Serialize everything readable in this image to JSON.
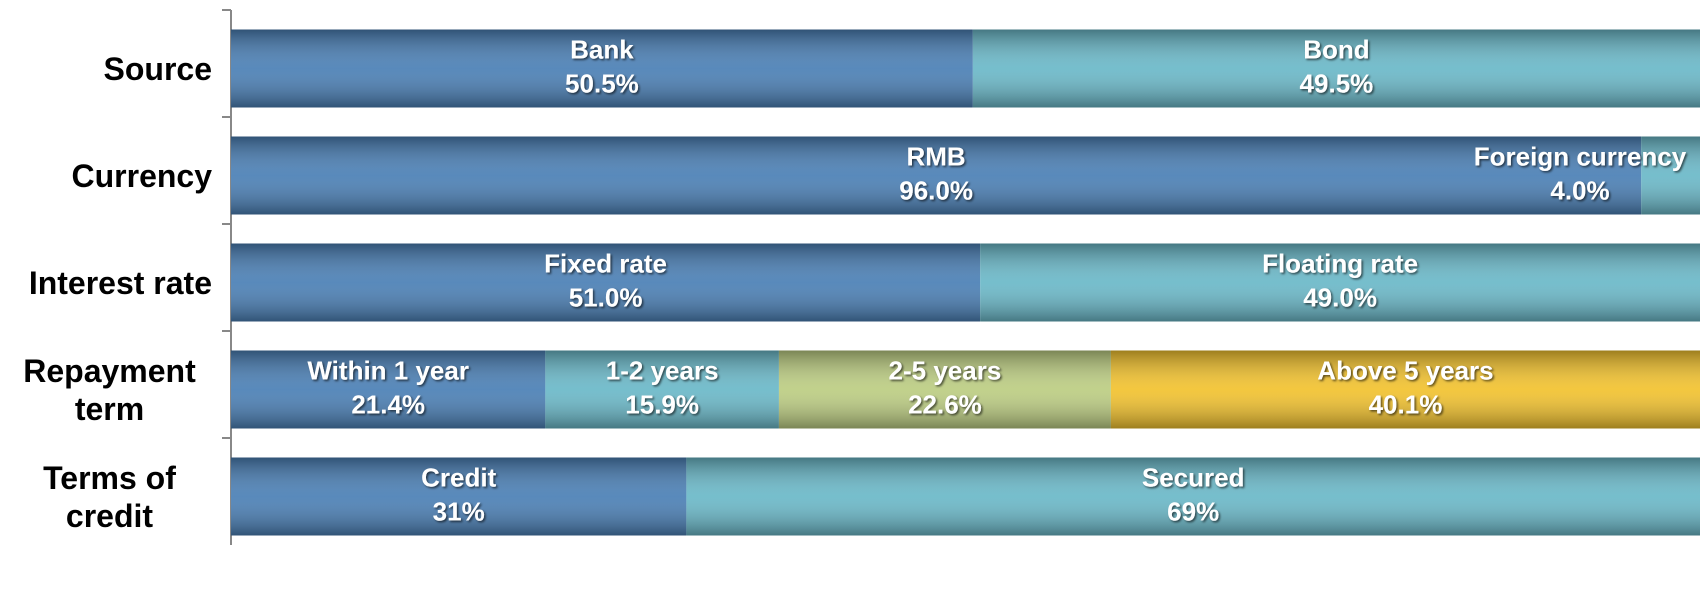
{
  "chart_data": {
    "type": "bar",
    "orientation": "horizontal",
    "stacked": true,
    "xlim": [
      0,
      100
    ],
    "rows": [
      {
        "category": "Source",
        "segments": [
          {
            "name": "Bank",
            "value": 50.5,
            "value_label": "50.5%",
            "color": "#4a7fb5"
          },
          {
            "name": "Bond",
            "value": 49.5,
            "value_label": "49.5%",
            "color": "#6ab8c8"
          }
        ]
      },
      {
        "category": "Currency",
        "segments": [
          {
            "name": "RMB",
            "value": 96.0,
            "value_label": "96.0%",
            "color": "#4a7fb5"
          },
          {
            "name": "Foreign currency",
            "value": 4.0,
            "value_label": "4.0%",
            "color": "#6ab8c8"
          }
        ]
      },
      {
        "category": "Interest rate",
        "segments": [
          {
            "name": "Fixed rate",
            "value": 51.0,
            "value_label": "51.0%",
            "color": "#4a7fb5"
          },
          {
            "name": "Floating rate",
            "value": 49.0,
            "value_label": "49.0%",
            "color": "#6ab8c8"
          }
        ]
      },
      {
        "category": "Repayment term",
        "segments": [
          {
            "name": "Within 1 year",
            "value": 21.4,
            "value_label": "21.4%",
            "color": "#4a7fb5"
          },
          {
            "name": "1-2 years",
            "value": 15.9,
            "value_label": "15.9%",
            "color": "#6ab8c8"
          },
          {
            "name": "2-5 years",
            "value": 22.6,
            "value_label": "22.6%",
            "color": "#bccd82"
          },
          {
            "name": "Above 5 years",
            "value": 40.1,
            "value_label": "40.1%",
            "color": "#f2c22e"
          }
        ]
      },
      {
        "category": "Terms of credit",
        "segments": [
          {
            "name": "Credit",
            "value": 31,
            "value_label": "31%",
            "color": "#4a7fb5"
          },
          {
            "name": "Secured",
            "value": 69,
            "value_label": "69%",
            "color": "#6ab8c8"
          }
        ]
      }
    ]
  }
}
